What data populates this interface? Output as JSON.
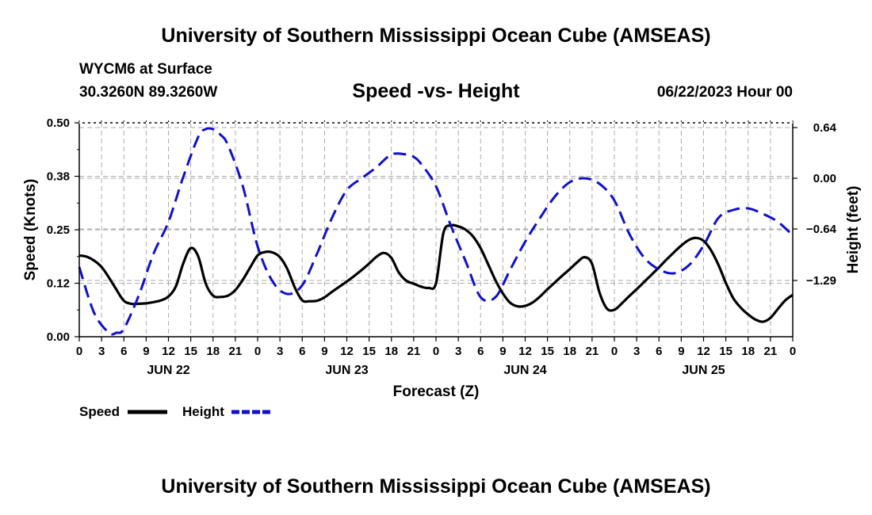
{
  "header": {
    "title": "University of Southern Mississippi Ocean Cube (AMSEAS)",
    "station": "WYCM6 at Surface",
    "coords": "30.3260N  89.3260W",
    "chart_title": "Speed -vs- Height",
    "date": "06/22/2023 Hour 00"
  },
  "footer": {
    "title": "University of Southern Mississippi Ocean Cube (AMSEAS)"
  },
  "colors": {
    "speed": "#000000",
    "height": "#1010cc",
    "grid": "#aaaaaa"
  },
  "chart_data": {
    "type": "line",
    "title": "Speed -vs- Height",
    "xlabel": "Forecast (Z)",
    "ylabel_left": "Speed (Knots)",
    "ylabel_right": "Height (feet)",
    "x_range_hours": [
      0,
      96
    ],
    "x_tick_labels": [
      "0",
      "3",
      "6",
      "9",
      "12",
      "15",
      "18",
      "21",
      "0",
      "3",
      "6",
      "9",
      "12",
      "15",
      "18",
      "21",
      "0",
      "3",
      "6",
      "9",
      "12",
      "15",
      "18",
      "21",
      "0",
      "3",
      "6",
      "9",
      "12",
      "15",
      "18",
      "21",
      "0"
    ],
    "day_labels": [
      {
        "label": "JUN 22",
        "hour": 12
      },
      {
        "label": "JUN 23",
        "hour": 36
      },
      {
        "label": "JUN 24",
        "hour": 60
      },
      {
        "label": "JUN 25",
        "hour": 84
      }
    ],
    "y_left": {
      "range": [
        0,
        0.5
      ],
      "ticks": [
        0,
        0.125,
        0.25,
        0.375,
        0.5
      ],
      "tick_labels": [
        "0.00",
        "0.12",
        "0.25",
        "0.38",
        "0.50"
      ]
    },
    "y_right": {
      "range": [
        -2.0,
        0.7
      ],
      "ticks": [
        0.64,
        0.0,
        -0.64,
        -1.29
      ],
      "tick_labels": [
        "0.64",
        "0.00",
        "−0.64",
        "−1.29"
      ]
    },
    "series": [
      {
        "name": "Speed",
        "axis": "left",
        "style": "solid",
        "x": [
          0,
          1,
          2,
          3,
          4,
          5,
          6,
          7,
          8,
          9,
          10,
          11,
          12,
          13,
          14,
          15,
          16,
          17,
          18,
          19,
          20,
          21,
          22,
          23,
          24,
          25,
          26,
          27,
          28,
          29,
          30,
          31,
          32,
          33,
          34,
          35,
          36,
          37,
          38,
          39,
          40,
          41,
          42,
          43,
          44,
          45,
          46,
          47,
          48,
          49,
          50,
          51,
          52,
          53,
          54,
          55,
          56,
          57,
          58,
          59,
          60,
          61,
          62,
          63,
          64,
          65,
          66,
          67,
          68,
          69,
          70,
          71,
          72,
          73,
          74,
          75,
          76,
          77,
          78,
          79,
          80,
          81,
          82,
          83,
          84,
          85,
          86,
          87,
          88,
          89,
          90,
          91,
          92,
          93,
          94,
          95,
          96
        ],
        "values": [
          0.19,
          0.187,
          0.178,
          0.163,
          0.138,
          0.11,
          0.084,
          0.077,
          0.077,
          0.078,
          0.081,
          0.085,
          0.094,
          0.118,
          0.172,
          0.207,
          0.188,
          0.125,
          0.096,
          0.093,
          0.096,
          0.109,
          0.133,
          0.162,
          0.19,
          0.198,
          0.197,
          0.186,
          0.158,
          0.115,
          0.085,
          0.083,
          0.084,
          0.092,
          0.105,
          0.117,
          0.129,
          0.142,
          0.156,
          0.171,
          0.187,
          0.196,
          0.184,
          0.15,
          0.131,
          0.124,
          0.117,
          0.114,
          0.125,
          0.243,
          0.26,
          0.258,
          0.25,
          0.234,
          0.207,
          0.17,
          0.132,
          0.101,
          0.079,
          0.071,
          0.072,
          0.08,
          0.094,
          0.111,
          0.127,
          0.143,
          0.158,
          0.174,
          0.186,
          0.17,
          0.103,
          0.066,
          0.063,
          0.078,
          0.095,
          0.111,
          0.128,
          0.145,
          0.162,
          0.18,
          0.197,
          0.213,
          0.226,
          0.231,
          0.224,
          0.202,
          0.168,
          0.126,
          0.09,
          0.068,
          0.052,
          0.04,
          0.035,
          0.044,
          0.065,
          0.085,
          0.098
        ]
      },
      {
        "name": "Height",
        "axis": "right",
        "style": "dashed",
        "x": [
          0,
          2,
          4,
          5,
          6,
          8,
          10,
          12,
          14,
          16,
          17,
          18,
          19,
          20,
          22,
          24,
          26,
          28,
          30,
          32,
          34,
          36,
          38,
          40,
          42,
          44,
          45,
          46,
          48,
          50,
          52,
          54,
          56,
          58,
          60,
          62,
          64,
          66,
          68,
          70,
          72,
          74,
          76,
          78,
          80,
          82,
          84,
          86,
          88,
          90,
          92,
          94,
          96
        ],
        "values": [
          -1.12,
          -1.7,
          -1.95,
          -1.95,
          -1.9,
          -1.48,
          -0.95,
          -0.55,
          0.02,
          0.52,
          0.62,
          0.62,
          0.55,
          0.42,
          -0.1,
          -0.86,
          -1.3,
          -1.46,
          -1.35,
          -0.95,
          -0.5,
          -0.15,
          0.0,
          0.14,
          0.3,
          0.3,
          0.27,
          0.18,
          -0.1,
          -0.6,
          -1.05,
          -1.5,
          -1.5,
          -1.15,
          -0.8,
          -0.5,
          -0.23,
          -0.05,
          0.0,
          -0.07,
          -0.28,
          -0.7,
          -1.0,
          -1.15,
          -1.2,
          -1.1,
          -0.85,
          -0.5,
          -0.4,
          -0.38,
          -0.45,
          -0.55,
          -0.72
        ]
      }
    ],
    "legend": {
      "position": "bottom-left",
      "entries": [
        {
          "label": "Speed",
          "style": "solid"
        },
        {
          "label": "Height",
          "style": "dashed"
        }
      ]
    }
  }
}
